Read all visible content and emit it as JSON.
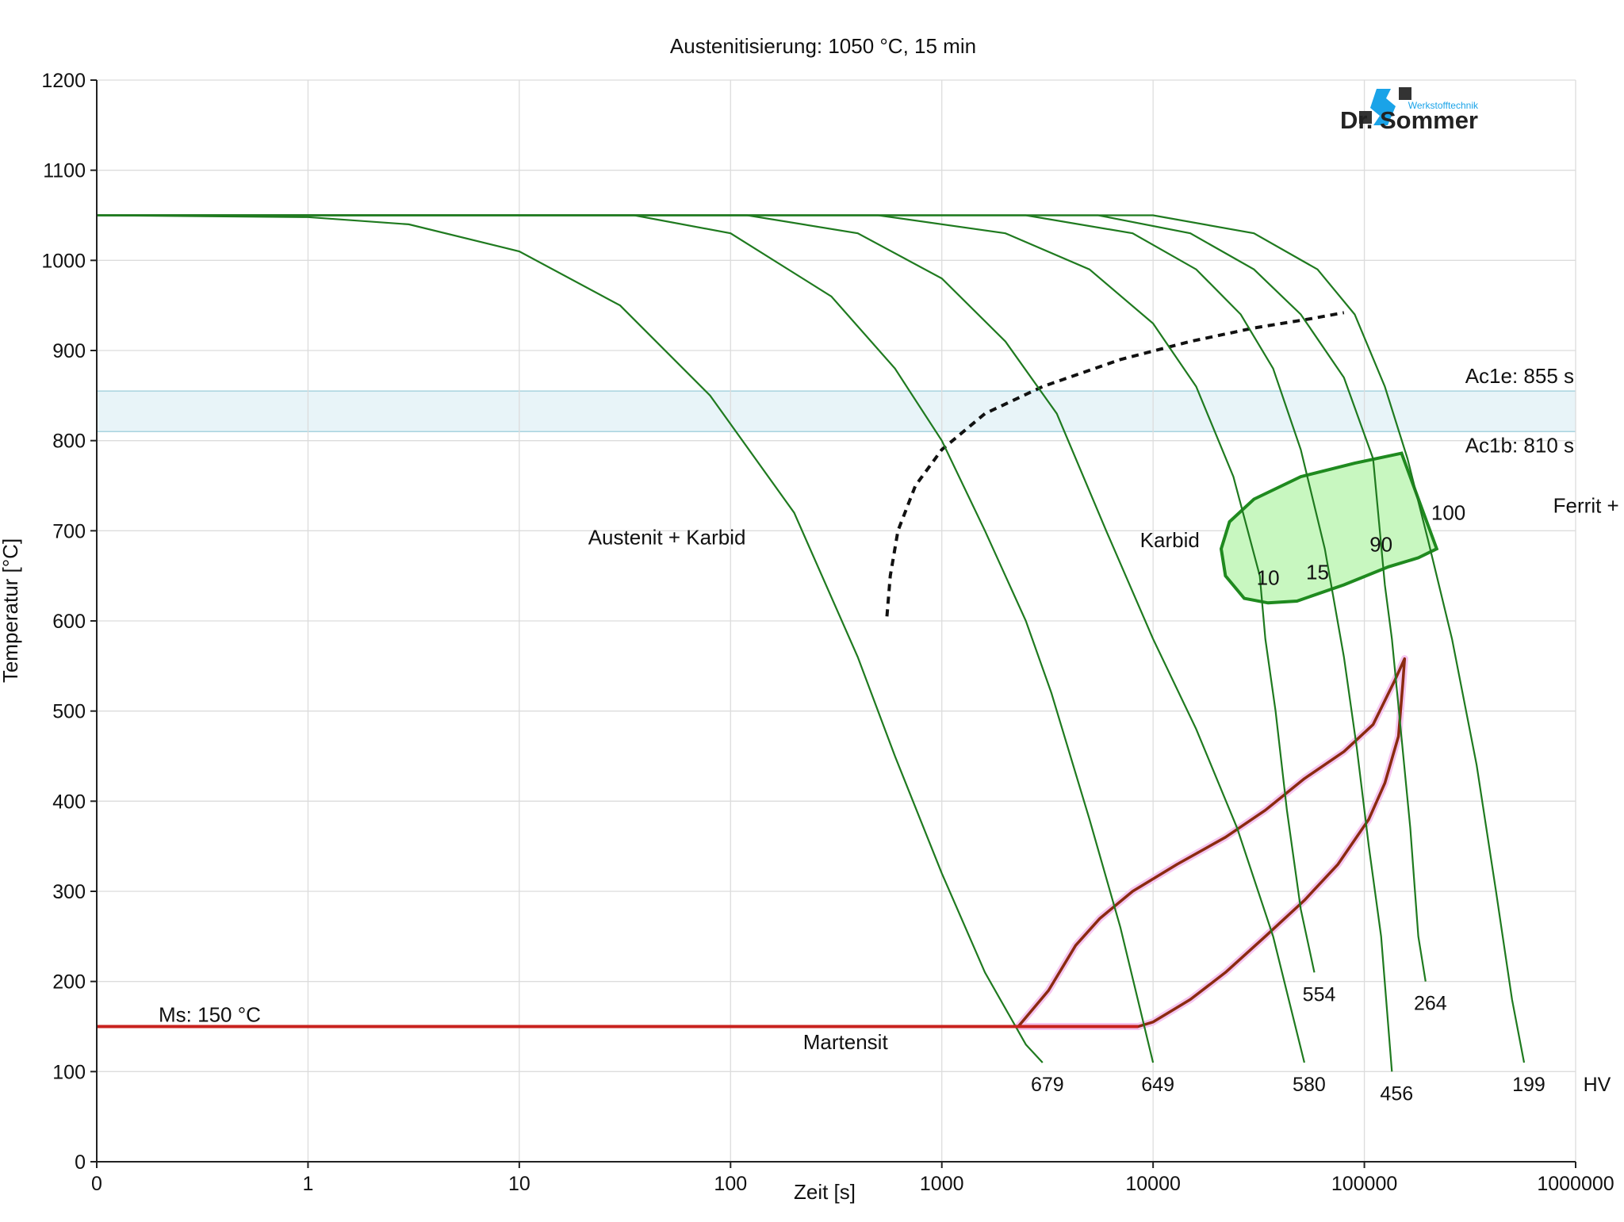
{
  "chart_data": {
    "type": "line",
    "title": "Austenitisierung: 1050 °C, 15 min",
    "xlabel": "Zeit [s]",
    "ylabel": "Temperatur [°C]",
    "x_scale": "log",
    "x_ticks": [
      "0",
      "1",
      "10",
      "100",
      "1000",
      "10000",
      "100000",
      "1000000"
    ],
    "y_ticks": [
      "0",
      "100",
      "200",
      "300",
      "400",
      "500",
      "600",
      "700",
      "800",
      "900",
      "1000",
      "1100",
      "1200"
    ],
    "ylim": [
      0,
      1200
    ],
    "grid": true,
    "colors": {
      "cooling": "#1f7a1f",
      "ferrite_fill": "#c8f7c0",
      "ferrite_stroke": "#1f8a1f",
      "martensite": "#c8221e",
      "bainite": "#8b2a10",
      "ac_band": "#e8f4f8",
      "ac_band_border": "#a9d3df",
      "carbide_line": "#111111"
    },
    "ac_lines": [
      {
        "label": "Ac1e: 855 s",
        "temperature": 855
      },
      {
        "label": "Ac1b: 810 s",
        "temperature": 810
      }
    ],
    "ms": {
      "label": "Ms: 150 °C",
      "temperature": 150
    },
    "regions": [
      {
        "label": "Austenit + Karbid",
        "x": 5,
        "y": 685
      },
      {
        "label": "Karbid",
        "x": 1200,
        "y": 682
      },
      {
        "label": "Ferrit + Karbid",
        "x": 160000,
        "y": 720
      },
      {
        "label": "Martensit",
        "x": 35,
        "y": 125
      }
    ],
    "transformation_labels": [
      {
        "label": "10",
        "x": 3500,
        "y": 640
      },
      {
        "label": "15",
        "x": 6000,
        "y": 646
      },
      {
        "label": "90",
        "x": 12000,
        "y": 677
      },
      {
        "label": "100",
        "x": 25000,
        "y": 712
      }
    ],
    "hv_unit": "HV",
    "cooling_curves": [
      {
        "hv": "679",
        "points": [
          [
            0.01,
            1050
          ],
          [
            0.1,
            1048
          ],
          [
            0.3,
            1040
          ],
          [
            1,
            1010
          ],
          [
            3,
            950
          ],
          [
            8,
            850
          ],
          [
            20,
            720
          ],
          [
            40,
            560
          ],
          [
            60,
            450
          ],
          [
            100,
            320
          ],
          [
            160,
            210
          ],
          [
            250,
            130
          ],
          [
            300,
            110
          ]
        ]
      },
      {
        "hv": "649",
        "points": [
          [
            0.01,
            1050
          ],
          [
            3.5,
            1050
          ],
          [
            10,
            1030
          ],
          [
            30,
            960
          ],
          [
            60,
            880
          ],
          [
            100,
            800
          ],
          [
            160,
            700
          ],
          [
            250,
            600
          ],
          [
            330,
            520
          ],
          [
            500,
            380
          ],
          [
            700,
            260
          ],
          [
            1000,
            110
          ]
        ]
      },
      {
        "hv": "580",
        "points": [
          [
            0.01,
            1050
          ],
          [
            12,
            1050
          ],
          [
            40,
            1030
          ],
          [
            100,
            980
          ],
          [
            200,
            910
          ],
          [
            350,
            830
          ],
          [
            600,
            700
          ],
          [
            1000,
            580
          ],
          [
            1600,
            480
          ],
          [
            2500,
            370
          ],
          [
            3700,
            250
          ],
          [
            5200,
            110
          ]
        ]
      },
      {
        "hv": "554",
        "points": [
          [
            0.01,
            1050
          ],
          [
            50,
            1050
          ],
          [
            200,
            1030
          ],
          [
            500,
            990
          ],
          [
            1000,
            930
          ],
          [
            1600,
            860
          ],
          [
            2400,
            760
          ],
          [
            3200,
            650
          ],
          [
            3400,
            580
          ],
          [
            3800,
            500
          ],
          [
            4300,
            390
          ],
          [
            5000,
            280
          ],
          [
            5800,
            210
          ]
        ]
      },
      {
        "hv": "456",
        "points": [
          [
            0.01,
            1050
          ],
          [
            250,
            1050
          ],
          [
            800,
            1030
          ],
          [
            1600,
            990
          ],
          [
            2600,
            940
          ],
          [
            3700,
            880
          ],
          [
            5000,
            790
          ],
          [
            6500,
            680
          ],
          [
            8000,
            560
          ],
          [
            9200,
            460
          ],
          [
            10500,
            350
          ],
          [
            12000,
            250
          ],
          [
            13500,
            100
          ]
        ]
      },
      {
        "hv": "264",
        "points": [
          [
            0.01,
            1050
          ],
          [
            550,
            1050
          ],
          [
            1500,
            1030
          ],
          [
            3000,
            990
          ],
          [
            5000,
            940
          ],
          [
            8000,
            870
          ],
          [
            11000,
            780
          ],
          [
            12500,
            640
          ],
          [
            13500,
            580
          ],
          [
            15000,
            470
          ],
          [
            16500,
            370
          ],
          [
            18000,
            250
          ],
          [
            19500,
            200
          ]
        ]
      },
      {
        "hv": "199",
        "points": [
          [
            0.01,
            1050
          ],
          [
            1000,
            1050
          ],
          [
            3000,
            1030
          ],
          [
            6000,
            990
          ],
          [
            9000,
            940
          ],
          [
            12500,
            860
          ],
          [
            16000,
            780
          ],
          [
            20000,
            690
          ],
          [
            26000,
            580
          ],
          [
            34000,
            440
          ],
          [
            42000,
            300
          ],
          [
            50000,
            180
          ],
          [
            57000,
            110
          ]
        ]
      }
    ],
    "carbide_line_points": [
      [
        55,
        605
      ],
      [
        57,
        650
      ],
      [
        62,
        700
      ],
      [
        75,
        750
      ],
      [
        100,
        790
      ],
      [
        160,
        830
      ],
      [
        300,
        860
      ],
      [
        700,
        890
      ],
      [
        1500,
        910
      ],
      [
        3000,
        925
      ],
      [
        5500,
        935
      ],
      [
        8000,
        942
      ]
    ],
    "ferrite_region_points": [
      [
        15000,
        786
      ],
      [
        9000,
        775
      ],
      [
        5000,
        760
      ],
      [
        3000,
        735
      ],
      [
        2300,
        710
      ],
      [
        2100,
        680
      ],
      [
        2200,
        650
      ],
      [
        2700,
        625
      ],
      [
        3500,
        620
      ],
      [
        4800,
        622
      ],
      [
        8000,
        640
      ],
      [
        13000,
        660
      ],
      [
        18000,
        670
      ],
      [
        22000,
        680
      ]
    ],
    "bainite_region_points": [
      [
        230,
        150
      ],
      [
        320,
        190
      ],
      [
        430,
        240
      ],
      [
        560,
        270
      ],
      [
        800,
        300
      ],
      [
        1300,
        330
      ],
      [
        2200,
        360
      ],
      [
        3400,
        390
      ],
      [
        5200,
        425
      ],
      [
        8000,
        455
      ],
      [
        11000,
        485
      ],
      [
        14000,
        535
      ],
      [
        15500,
        558
      ],
      [
        15200,
        530
      ],
      [
        14500,
        472
      ],
      [
        12500,
        420
      ],
      [
        10500,
        380
      ],
      [
        7500,
        330
      ],
      [
        5200,
        290
      ],
      [
        3400,
        250
      ],
      [
        2200,
        210
      ],
      [
        1500,
        180
      ],
      [
        1000,
        155
      ],
      [
        850,
        150
      ]
    ],
    "martensite_line": [
      [
        0.01,
        150
      ],
      [
        850,
        150
      ]
    ]
  }
}
